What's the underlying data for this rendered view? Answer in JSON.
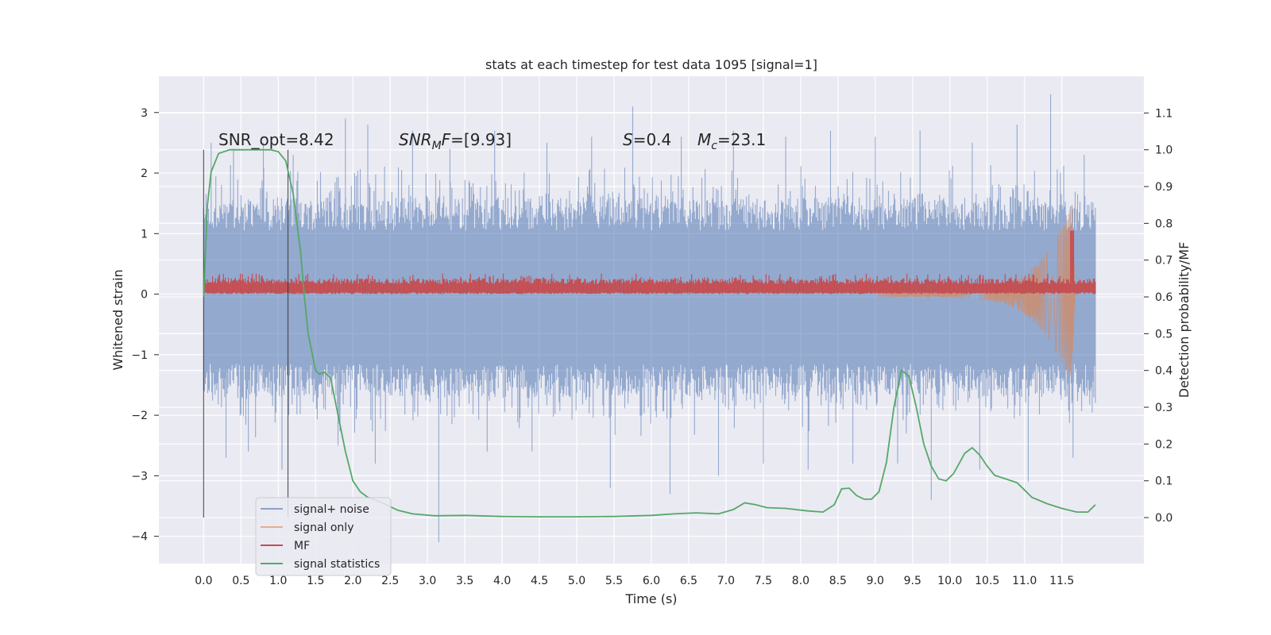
{
  "chart_data": {
    "type": "line",
    "title": "stats at each timestep for test data 1095 [signal=1]",
    "xlabel": "Time (s)",
    "ylabel": "Whitened strain",
    "y2label": "Detection probability/MF",
    "xlim": [
      -0.6,
      12.6
    ],
    "ylim": [
      -4.45,
      3.6
    ],
    "y2lim": [
      -0.125,
      1.2
    ],
    "x_ticks": [
      "0.0",
      "0.5",
      "1.0",
      "1.5",
      "2.0",
      "2.5",
      "3.0",
      "3.5",
      "4.0",
      "4.5",
      "5.0",
      "5.5",
      "6.0",
      "6.5",
      "7.0",
      "7.5",
      "8.0",
      "8.5",
      "9.0",
      "9.5",
      "10.0",
      "10.5",
      "11.0",
      "11.5"
    ],
    "y_ticks": [
      "3",
      "2",
      "1",
      "0",
      "−1",
      "−2",
      "−3",
      "−4"
    ],
    "y2_ticks": [
      "1.1",
      "1.0",
      "0.9",
      "0.8",
      "0.7",
      "0.6",
      "0.5",
      "0.4",
      "0.3",
      "0.2",
      "0.1",
      "0.0"
    ],
    "grid": true,
    "legend_position": "lower-left",
    "annotations": [
      "SNR_opt=8.42",
      "SNR_MF=[9.93]",
      "S=0.4",
      "M_c=23.1"
    ],
    "vertical_markers_x": [
      0.0,
      1.13
    ],
    "series": [
      {
        "name": "signal+ noise",
        "axis": "left",
        "kind": "noise-band",
        "x_range": [
          0.0,
          11.95
        ],
        "typical_range": [
          -1.5,
          1.5
        ],
        "peaks_up": [
          [
            0.1,
            2.5
          ],
          [
            0.4,
            2.4
          ],
          [
            0.8,
            2.5
          ],
          [
            1.2,
            2.3
          ],
          [
            1.9,
            2.9
          ],
          [
            2.2,
            2.8
          ],
          [
            2.8,
            2.7
          ],
          [
            3.3,
            2.4
          ],
          [
            3.9,
            2.7
          ],
          [
            4.6,
            2.5
          ],
          [
            5.2,
            2.6
          ],
          [
            5.75,
            3.1
          ],
          [
            6.4,
            2.6
          ],
          [
            7.1,
            2.7
          ],
          [
            7.8,
            2.6
          ],
          [
            8.4,
            2.7
          ],
          [
            9.0,
            2.6
          ],
          [
            9.6,
            2.7
          ],
          [
            10.3,
            2.5
          ],
          [
            10.9,
            2.8
          ],
          [
            11.35,
            3.3
          ],
          [
            11.8,
            2.3
          ]
        ],
        "peaks_down": [
          [
            0.3,
            -2.7
          ],
          [
            0.6,
            -2.6
          ],
          [
            1.05,
            -2.9
          ],
          [
            1.8,
            -2.5
          ],
          [
            2.3,
            -2.8
          ],
          [
            3.15,
            -4.1
          ],
          [
            3.8,
            -2.6
          ],
          [
            4.4,
            -2.6
          ],
          [
            5.45,
            -3.2
          ],
          [
            6.25,
            -3.3
          ],
          [
            6.9,
            -3.0
          ],
          [
            7.5,
            -2.8
          ],
          [
            8.1,
            -2.9
          ],
          [
            8.7,
            -2.8
          ],
          [
            9.3,
            -2.8
          ],
          [
            9.75,
            -3.4
          ],
          [
            10.4,
            -2.9
          ],
          [
            11.05,
            -3.1
          ],
          [
            11.65,
            -2.7
          ]
        ],
        "color": "#4c72b0"
      },
      {
        "name": "signal only",
        "axis": "left",
        "kind": "chirp",
        "x_range": [
          9.0,
          11.68
        ],
        "peak": [
          11.64,
          1.5
        ],
        "color": "#dd8452"
      },
      {
        "name": "MF",
        "axis": "left",
        "kind": "band",
        "x_range": [
          0.0,
          11.95
        ],
        "range": [
          0.0,
          0.3
        ],
        "spike": [
          11.64,
          1.05
        ],
        "color": "#c44e52"
      },
      {
        "name": "signal statistics",
        "axis": "right",
        "color": "#55a868",
        "points": [
          [
            0.0,
            0.6
          ],
          [
            0.05,
            0.85
          ],
          [
            0.1,
            0.94
          ],
          [
            0.2,
            0.99
          ],
          [
            0.35,
            1.0
          ],
          [
            0.6,
            1.0
          ],
          [
            0.9,
            1.0
          ],
          [
            1.0,
            0.995
          ],
          [
            1.1,
            0.97
          ],
          [
            1.2,
            0.88
          ],
          [
            1.3,
            0.72
          ],
          [
            1.35,
            0.6
          ],
          [
            1.4,
            0.5
          ],
          [
            1.45,
            0.45
          ],
          [
            1.5,
            0.4
          ],
          [
            1.55,
            0.39
          ],
          [
            1.62,
            0.395
          ],
          [
            1.7,
            0.38
          ],
          [
            1.78,
            0.3
          ],
          [
            1.9,
            0.18
          ],
          [
            2.0,
            0.1
          ],
          [
            2.1,
            0.07
          ],
          [
            2.2,
            0.055
          ],
          [
            2.3,
            0.048
          ],
          [
            2.45,
            0.035
          ],
          [
            2.6,
            0.02
          ],
          [
            2.8,
            0.01
          ],
          [
            3.1,
            0.005
          ],
          [
            3.5,
            0.006
          ],
          [
            4.0,
            0.003
          ],
          [
            4.5,
            0.002
          ],
          [
            5.0,
            0.002
          ],
          [
            5.5,
            0.003
          ],
          [
            6.0,
            0.006
          ],
          [
            6.3,
            0.01
          ],
          [
            6.6,
            0.013
          ],
          [
            6.9,
            0.01
          ],
          [
            7.1,
            0.022
          ],
          [
            7.25,
            0.04
          ],
          [
            7.4,
            0.035
          ],
          [
            7.55,
            0.027
          ],
          [
            7.8,
            0.025
          ],
          [
            8.1,
            0.018
          ],
          [
            8.3,
            0.015
          ],
          [
            8.45,
            0.035
          ],
          [
            8.55,
            0.078
          ],
          [
            8.65,
            0.08
          ],
          [
            8.75,
            0.06
          ],
          [
            8.85,
            0.05
          ],
          [
            8.95,
            0.05
          ],
          [
            9.05,
            0.07
          ],
          [
            9.15,
            0.15
          ],
          [
            9.25,
            0.3
          ],
          [
            9.35,
            0.4
          ],
          [
            9.45,
            0.385
          ],
          [
            9.55,
            0.3
          ],
          [
            9.65,
            0.2
          ],
          [
            9.75,
            0.14
          ],
          [
            9.85,
            0.105
          ],
          [
            9.95,
            0.1
          ],
          [
            10.05,
            0.12
          ],
          [
            10.2,
            0.175
          ],
          [
            10.3,
            0.19
          ],
          [
            10.4,
            0.17
          ],
          [
            10.5,
            0.14
          ],
          [
            10.6,
            0.115
          ],
          [
            10.75,
            0.105
          ],
          [
            10.9,
            0.095
          ],
          [
            11.0,
            0.075
          ],
          [
            11.1,
            0.055
          ],
          [
            11.3,
            0.038
          ],
          [
            11.5,
            0.025
          ],
          [
            11.7,
            0.015
          ],
          [
            11.85,
            0.015
          ],
          [
            11.95,
            0.035
          ]
        ]
      }
    ]
  }
}
